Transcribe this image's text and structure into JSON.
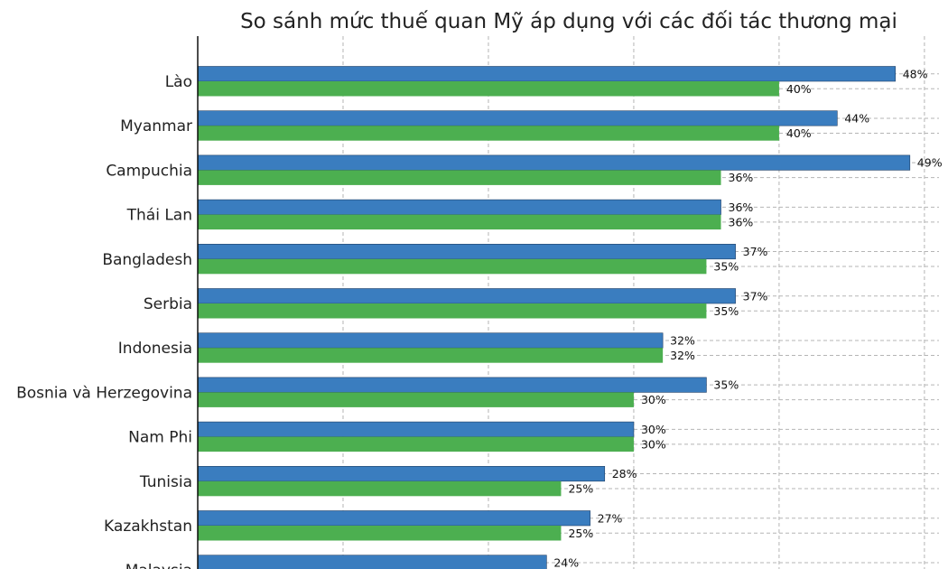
{
  "chart_data": {
    "type": "bar",
    "orientation": "horizontal",
    "title": "So sánh mức thuế quan Mỹ áp dụng với các đối tác thương mại",
    "xlabel": "",
    "ylabel": "",
    "grid": true,
    "xlim": [
      0,
      51
    ],
    "categories": [
      "Lào",
      "Myanmar",
      "Campuchia",
      "Thái Lan",
      "Bangladesh",
      "Serbia",
      "Indonesia",
      "Bosnia và Herzegovina",
      "Nam Phi",
      "Tunisia",
      "Kazakhstan",
      "Malaysia"
    ],
    "series": [
      {
        "color": "#3a7dbf",
        "values": [
          48,
          44,
          49,
          36,
          37,
          37,
          32,
          35,
          30,
          28,
          27,
          24
        ],
        "labels": [
          "48%",
          "44%",
          "49%",
          "36%",
          "37%",
          "37%",
          "32%",
          "35%",
          "30%",
          "28%",
          "27%",
          "24%"
        ]
      },
      {
        "color": "#4caf50",
        "values": [
          40,
          40,
          36,
          36,
          35,
          35,
          32,
          30,
          30,
          25,
          25,
          null
        ],
        "labels": [
          "40%",
          "40%",
          "36%",
          "36%",
          "35%",
          "35%",
          "32%",
          "30%",
          "30%",
          "25%",
          "25%",
          null
        ]
      }
    ]
  }
}
